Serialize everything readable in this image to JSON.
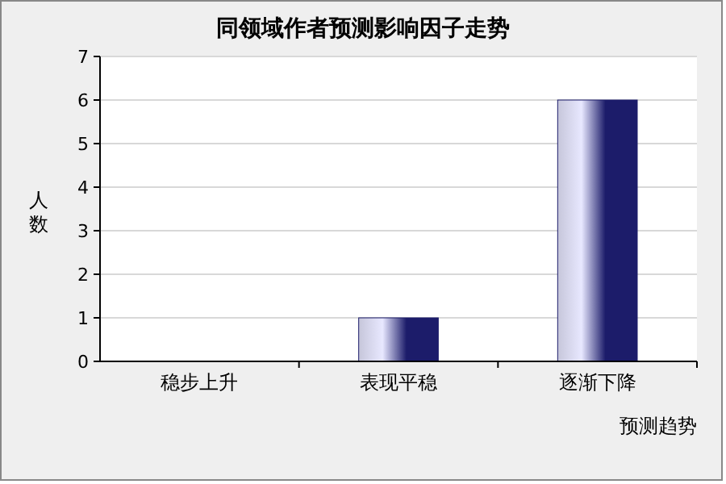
{
  "chart_data": {
    "type": "bar",
    "title": "同领域作者预测影响因子走势",
    "xlabel": "预测趋势",
    "ylabel": "人数",
    "categories": [
      "稳步上升",
      "表现平稳",
      "逐渐下降"
    ],
    "values": [
      0,
      1,
      6
    ],
    "color": "#1c1c6a",
    "ylim": [
      0,
      7
    ],
    "yticks": [
      0,
      1,
      2,
      3,
      4,
      5,
      6,
      7
    ],
    "grid": "y"
  }
}
